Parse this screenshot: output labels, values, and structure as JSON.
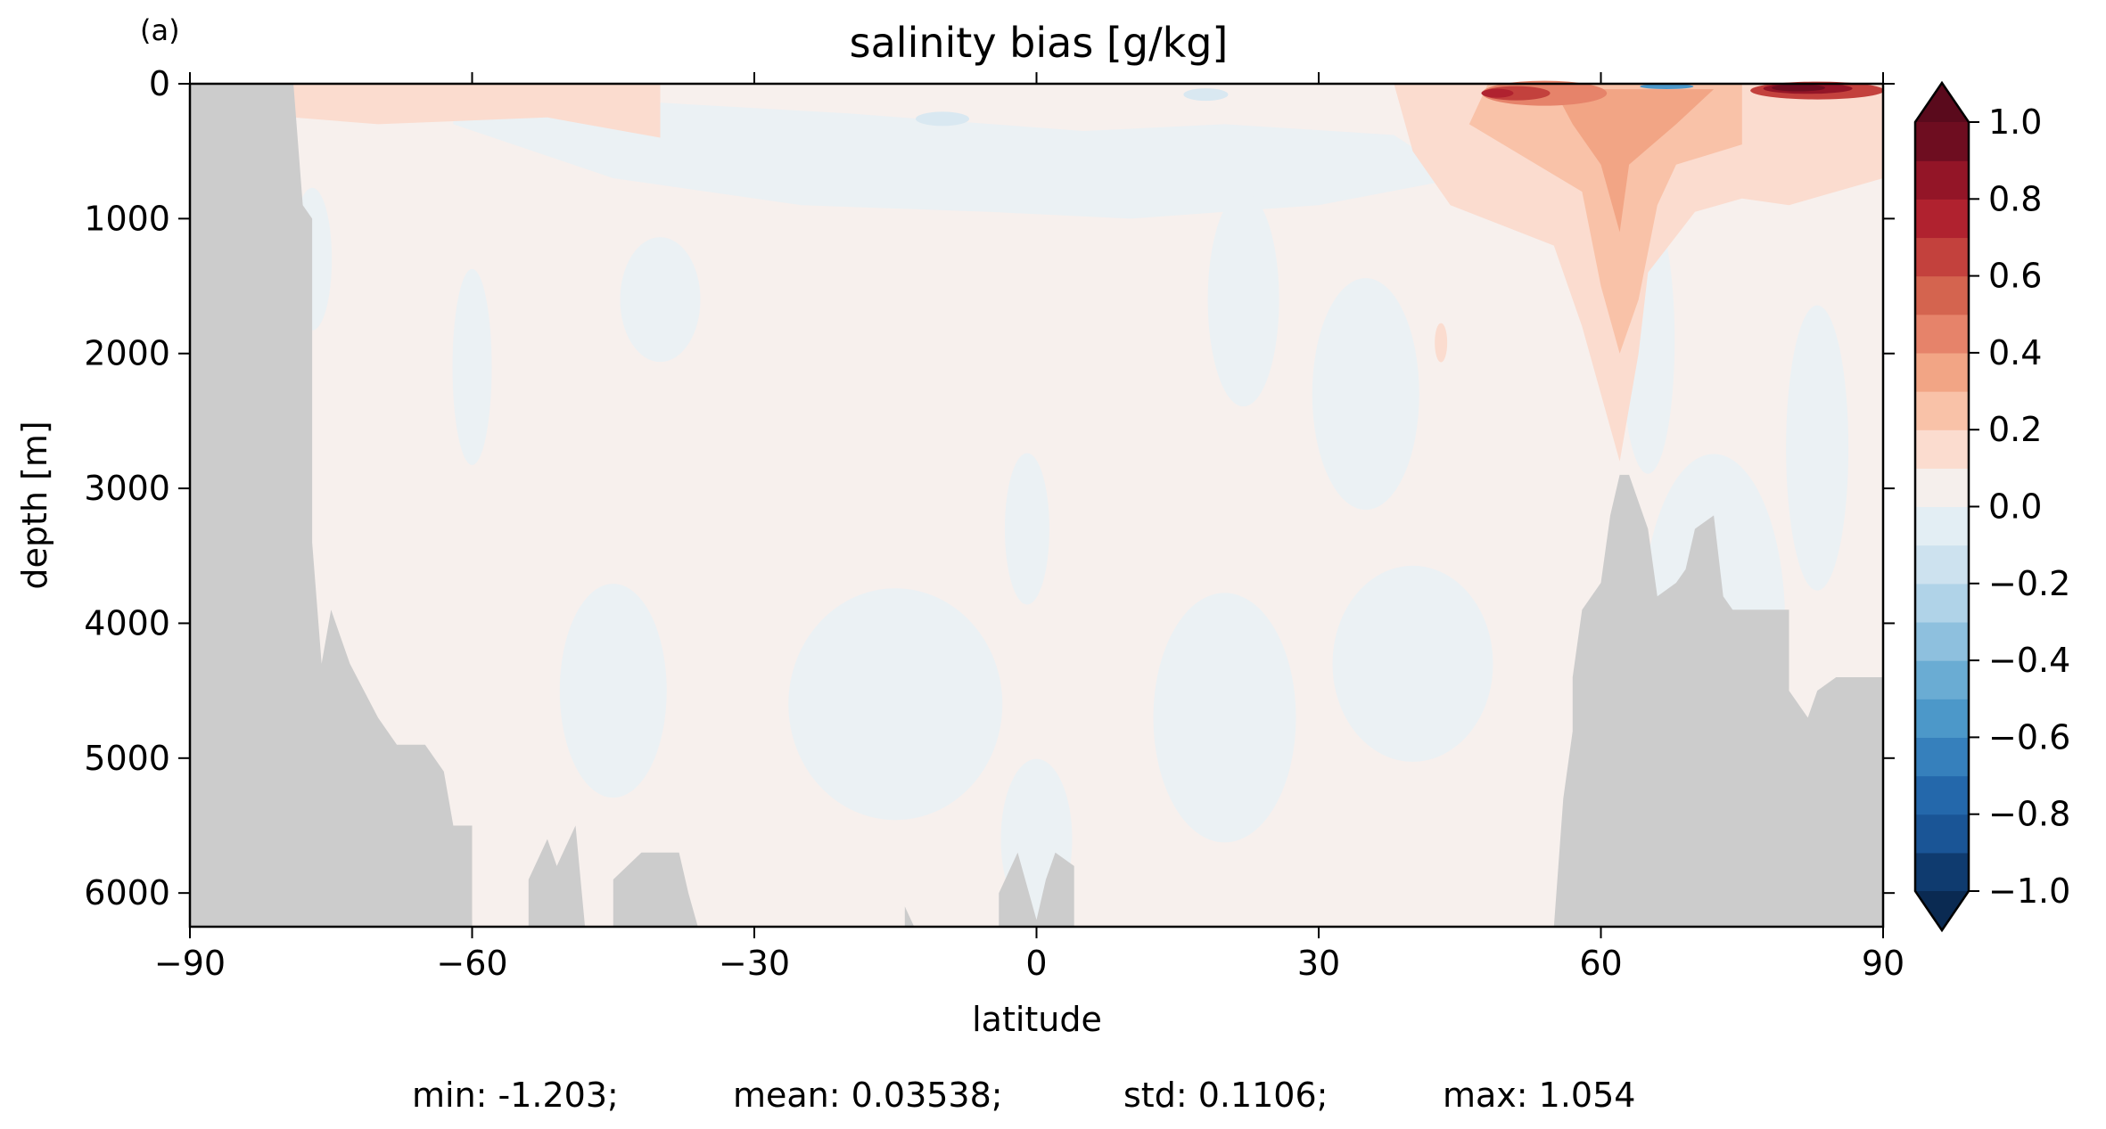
{
  "panel_label": "(a)",
  "chart_data": {
    "type": "heatmap",
    "title": "salinity bias [g/kg]",
    "xlabel": "latitude",
    "ylabel": "depth [m]",
    "xlim": [
      -90,
      90
    ],
    "ylim": [
      6250,
      0
    ],
    "x_ticks": [
      -90,
      -60,
      -30,
      0,
      30,
      60,
      90
    ],
    "x_tick_labels": [
      "−90",
      "−60",
      "−30",
      "0",
      "30",
      "60",
      "90"
    ],
    "y_ticks": [
      0,
      1000,
      2000,
      3000,
      4000,
      5000,
      6000
    ],
    "y_tick_labels": [
      "0",
      "1000",
      "2000",
      "3000",
      "4000",
      "5000",
      "6000"
    ],
    "grid": false,
    "colormap": "RdBu_r",
    "colorbar": {
      "vmin": -1.0,
      "vmax": 1.0,
      "levels": 20,
      "extend": "both",
      "ticks": [
        1.0,
        0.8,
        0.6,
        0.4,
        0.2,
        0.0,
        -0.2,
        -0.4,
        -0.6,
        -0.8,
        -1.0
      ],
      "tick_labels": [
        "1.0",
        "0.8",
        "0.6",
        "0.4",
        "0.2",
        "0.0",
        "−0.2",
        "−0.4",
        "−0.6",
        "−0.8",
        "−1.0"
      ],
      "colors": [
        "#0f3b6f",
        "#1a5596",
        "#2468ab",
        "#3680bc",
        "#4c98c9",
        "#6aacd3",
        "#8ec0de",
        "#b0d3e8",
        "#cde2ef",
        "#e3eef4",
        "#f5efec",
        "#fbdccf",
        "#f9c2a8",
        "#f2a585",
        "#e6836a",
        "#d4644f",
        "#c3413d",
        "#b0222f",
        "#931527",
        "#6e0d20"
      ],
      "under_color": "#0a2a52",
      "over_color": "#5a0a1c"
    },
    "land_color": "#cccccc",
    "background_value_color": "#f7f0ed",
    "negative_region_color": "#ebf1f4",
    "stats": {
      "min": "min: -1.203;",
      "mean": "mean: 0.03538;",
      "std": "std: 0.1106;",
      "max": "max: 1.054"
    }
  }
}
